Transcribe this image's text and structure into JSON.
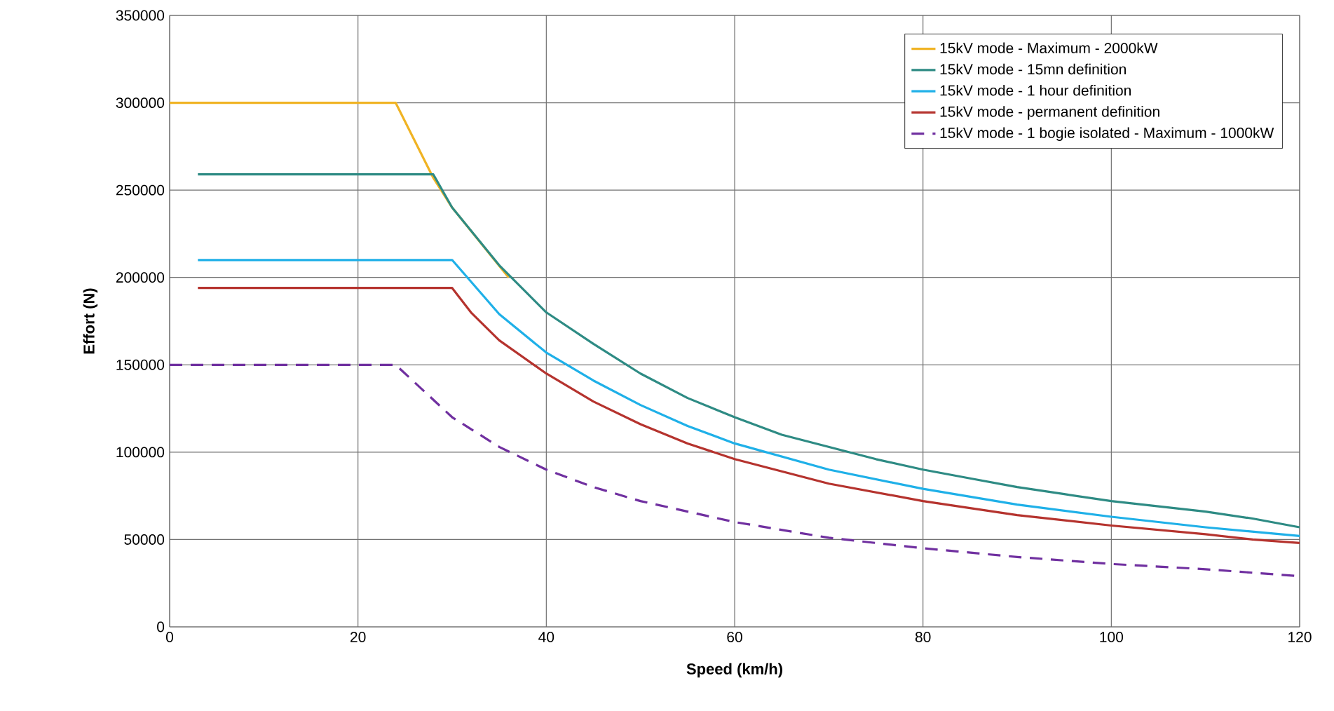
{
  "chart_data": {
    "type": "line",
    "xlabel": "Speed (km/h)",
    "ylabel": "Effort (N)",
    "xlim": [
      0,
      120
    ],
    "xticks": [
      0,
      20,
      40,
      60,
      80,
      100,
      120
    ],
    "ylim": [
      0,
      350000
    ],
    "yticks": [
      0,
      50000,
      100000,
      150000,
      200000,
      250000,
      300000,
      350000
    ],
    "grid": true,
    "legend": "top right",
    "marker": "none",
    "series": [
      {
        "name": "15kV mode - Maximum - 2000kW",
        "color": "#f0b323",
        "line_style": "solid",
        "x": [
          0,
          24,
          28,
          30,
          36
        ],
        "values": [
          300000,
          300000,
          257000,
          240000,
          200000
        ]
      },
      {
        "name": "15kV mode - 15mn definition",
        "color": "#2e8b84",
        "line_style": "solid",
        "x": [
          3,
          28,
          30,
          35,
          40,
          45,
          50,
          55,
          60,
          65,
          70,
          75,
          80,
          85,
          90,
          95,
          100,
          105,
          110,
          115,
          120
        ],
        "values": [
          259000,
          259000,
          240000,
          207000,
          180000,
          162000,
          145000,
          131000,
          120000,
          110000,
          103000,
          96000,
          90000,
          85000,
          80000,
          76000,
          72000,
          69000,
          66000,
          62000,
          57000
        ]
      },
      {
        "name": "15kV mode - 1 hour definition",
        "color": "#1fb0e8",
        "line_style": "solid",
        "x": [
          3,
          30,
          35,
          40,
          45,
          50,
          55,
          60,
          70,
          80,
          90,
          100,
          110,
          120
        ],
        "values": [
          210000,
          210000,
          179000,
          157000,
          141000,
          127000,
          115000,
          105000,
          90000,
          79000,
          70000,
          63000,
          57000,
          52000
        ]
      },
      {
        "name": "15kV mode - permanent definition",
        "color": "#b5332e",
        "line_style": "solid",
        "x": [
          3,
          30,
          32,
          35,
          40,
          45,
          50,
          55,
          60,
          70,
          80,
          90,
          100,
          110,
          115,
          120
        ],
        "values": [
          194000,
          194000,
          180000,
          164000,
          145000,
          129000,
          116000,
          105000,
          96000,
          82000,
          72000,
          64000,
          58000,
          53000,
          50000,
          48000
        ]
      },
      {
        "name": "15kV mode - 1 bogie isolated - Maximum - 1000kW",
        "color": "#7030a0",
        "line_style": "dashed",
        "x": [
          0,
          24,
          30,
          35,
          40,
          45,
          50,
          60,
          70,
          80,
          90,
          100,
          110,
          120
        ],
        "values": [
          150000,
          150000,
          120000,
          103000,
          90000,
          80000,
          72000,
          60000,
          51000,
          45000,
          40000,
          36000,
          33000,
          29000
        ]
      }
    ]
  }
}
